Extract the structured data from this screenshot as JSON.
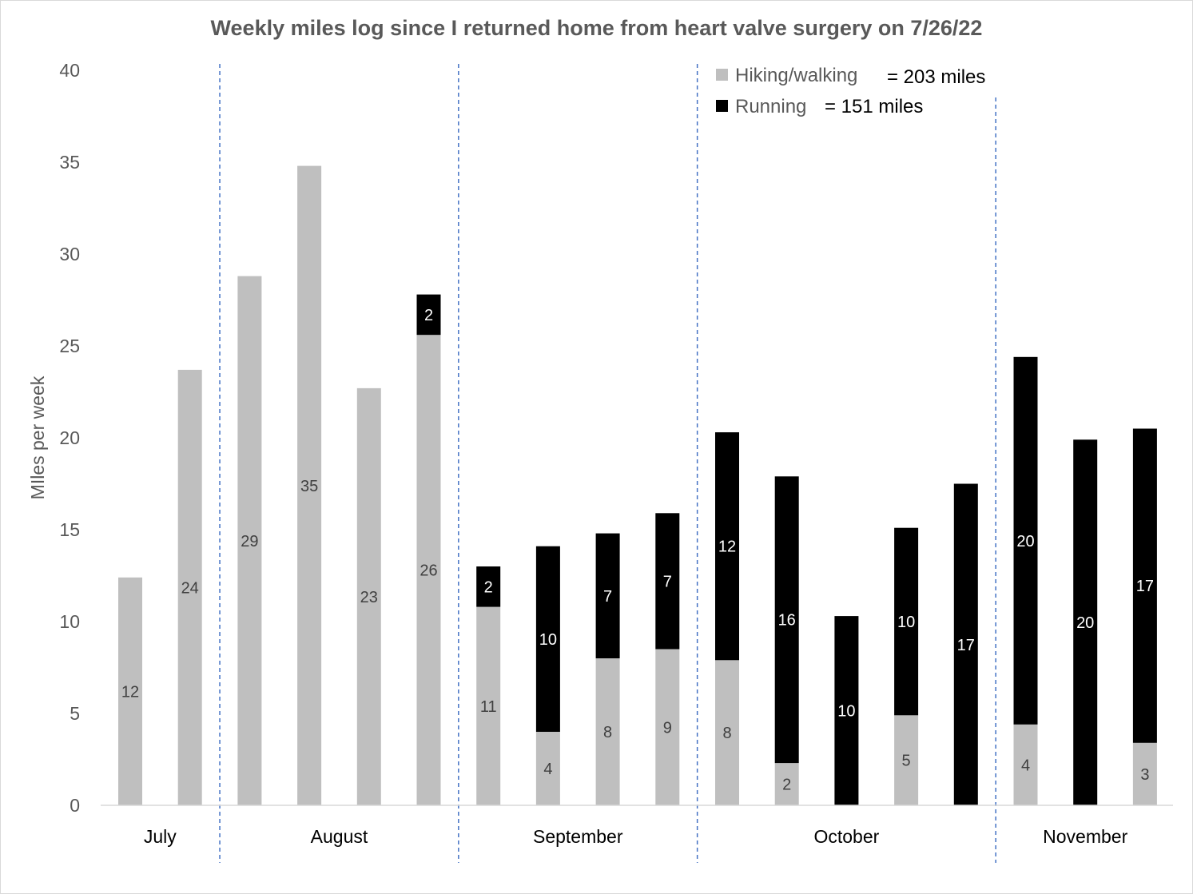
{
  "chart_data": {
    "type": "bar",
    "stacked": true,
    "title": "Weekly miles log since I returned home from heart valve surgery on 7/26/22",
    "ylabel": "MIles per week",
    "xlabel": "",
    "ylim": [
      0,
      40
    ],
    "yticks": [
      "0",
      "5",
      "10",
      "15",
      "20",
      "25",
      "30",
      "35",
      "40"
    ],
    "months": [
      {
        "label": "July",
        "weeks": 2
      },
      {
        "label": "August",
        "weeks": 4
      },
      {
        "label": "September",
        "weeks": 4
      },
      {
        "label": "October",
        "weeks": 5
      },
      {
        "label": "November",
        "weeks": 3
      }
    ],
    "series": [
      {
        "name": "Hiking/walking",
        "total_label": "= 203 miles",
        "color": "#bfbfbf",
        "values": [
          12.4,
          23.7,
          28.8,
          34.8,
          22.7,
          25.6,
          10.8,
          4.0,
          8.0,
          8.5,
          7.9,
          2.3,
          0,
          4.9,
          0,
          4.4,
          0,
          3.4
        ],
        "labels": [
          "12",
          "24",
          "29",
          "35",
          "23",
          "26",
          "11",
          "4",
          "8",
          "9",
          "8",
          "2",
          "",
          "5",
          "",
          "4",
          "",
          "3"
        ]
      },
      {
        "name": "Running",
        "total_label": "= 151 miles",
        "color": "#000000",
        "values": [
          0,
          0,
          0,
          0,
          0,
          2.2,
          2.2,
          10.1,
          6.8,
          7.4,
          12.4,
          15.6,
          10.3,
          10.2,
          17.5,
          20.0,
          19.9,
          17.1
        ],
        "labels": [
          "",
          "",
          "",
          "",
          "",
          "2",
          "2",
          "10",
          "7",
          "7",
          "12",
          "16",
          "10",
          "10",
          "17",
          "20",
          "20",
          "17"
        ]
      }
    ],
    "grid": false,
    "month_separators": "dashed vertical lines",
    "legend_position": "top-right"
  }
}
